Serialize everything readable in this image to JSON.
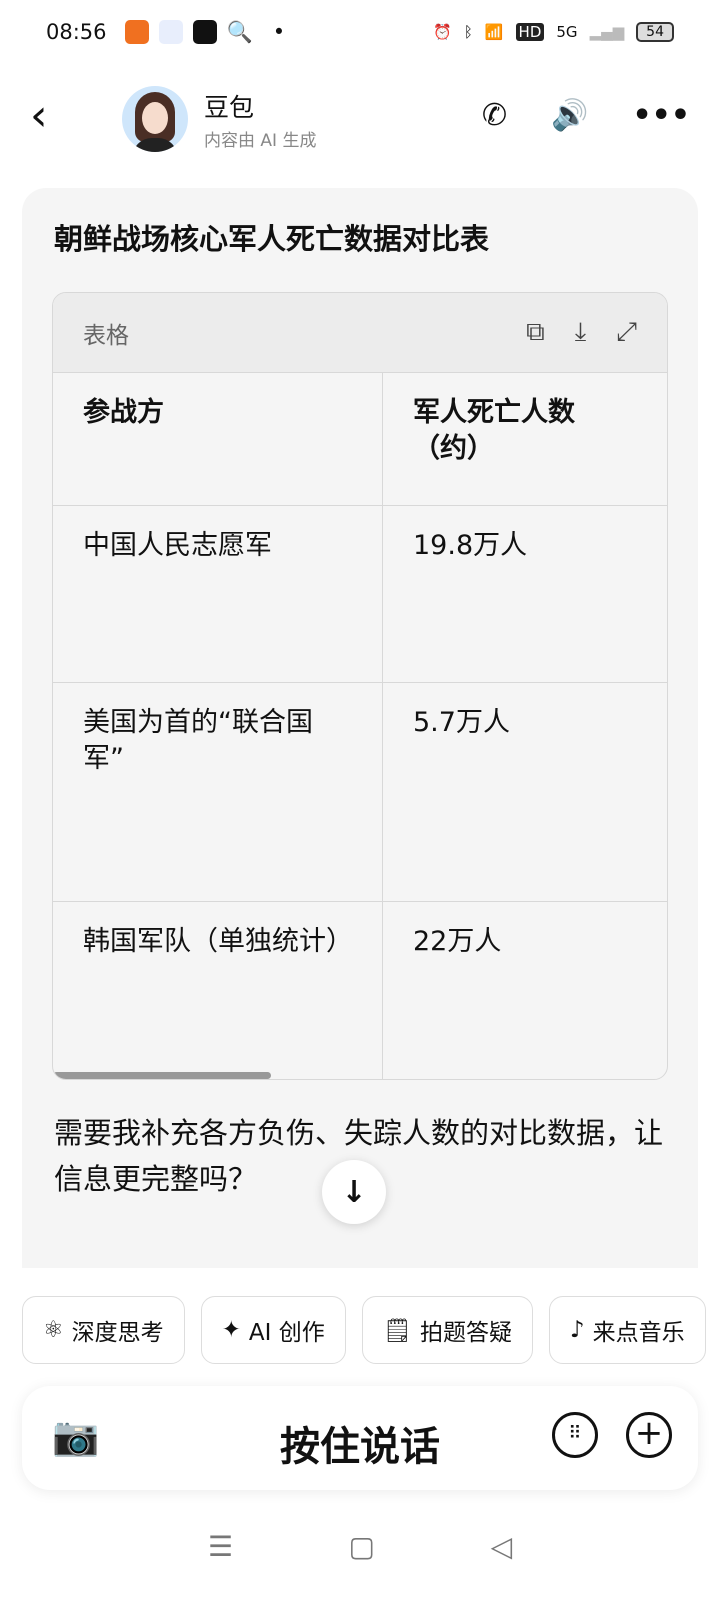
{
  "status": {
    "time": "08:56",
    "battery": "54",
    "network": "5G",
    "hd": "HD"
  },
  "header": {
    "name": "豆包",
    "subtitle": "内容由 AI 生成"
  },
  "message": {
    "title": "朝鲜战场核心军人死亡数据对比表",
    "table": {
      "label": "表格",
      "headers": [
        "参战方",
        "军人死亡人数（约）"
      ],
      "rows": [
        [
          "中国人民志愿军",
          "19.8万人"
        ],
        [
          "美国为首的“联合国军”",
          "5.7万人"
        ],
        [
          "韩国军队（单独统计）",
          "22万人"
        ]
      ]
    },
    "followup": "需要我补充各方负伤、失踪人数的对比数据，让信息更完整吗？"
  },
  "chips": [
    {
      "icon": "atom-icon",
      "label": "深度思考"
    },
    {
      "icon": "sparkle-icon",
      "label": "AI 创作"
    },
    {
      "icon": "doc-search-icon",
      "label": "拍题答疑"
    },
    {
      "icon": "music-icon",
      "label": "来点音乐"
    }
  ],
  "input": {
    "hold_to_talk": "按住说话"
  },
  "colors": {
    "accent": "#1a6cf0",
    "card": "#f5f5f5"
  }
}
